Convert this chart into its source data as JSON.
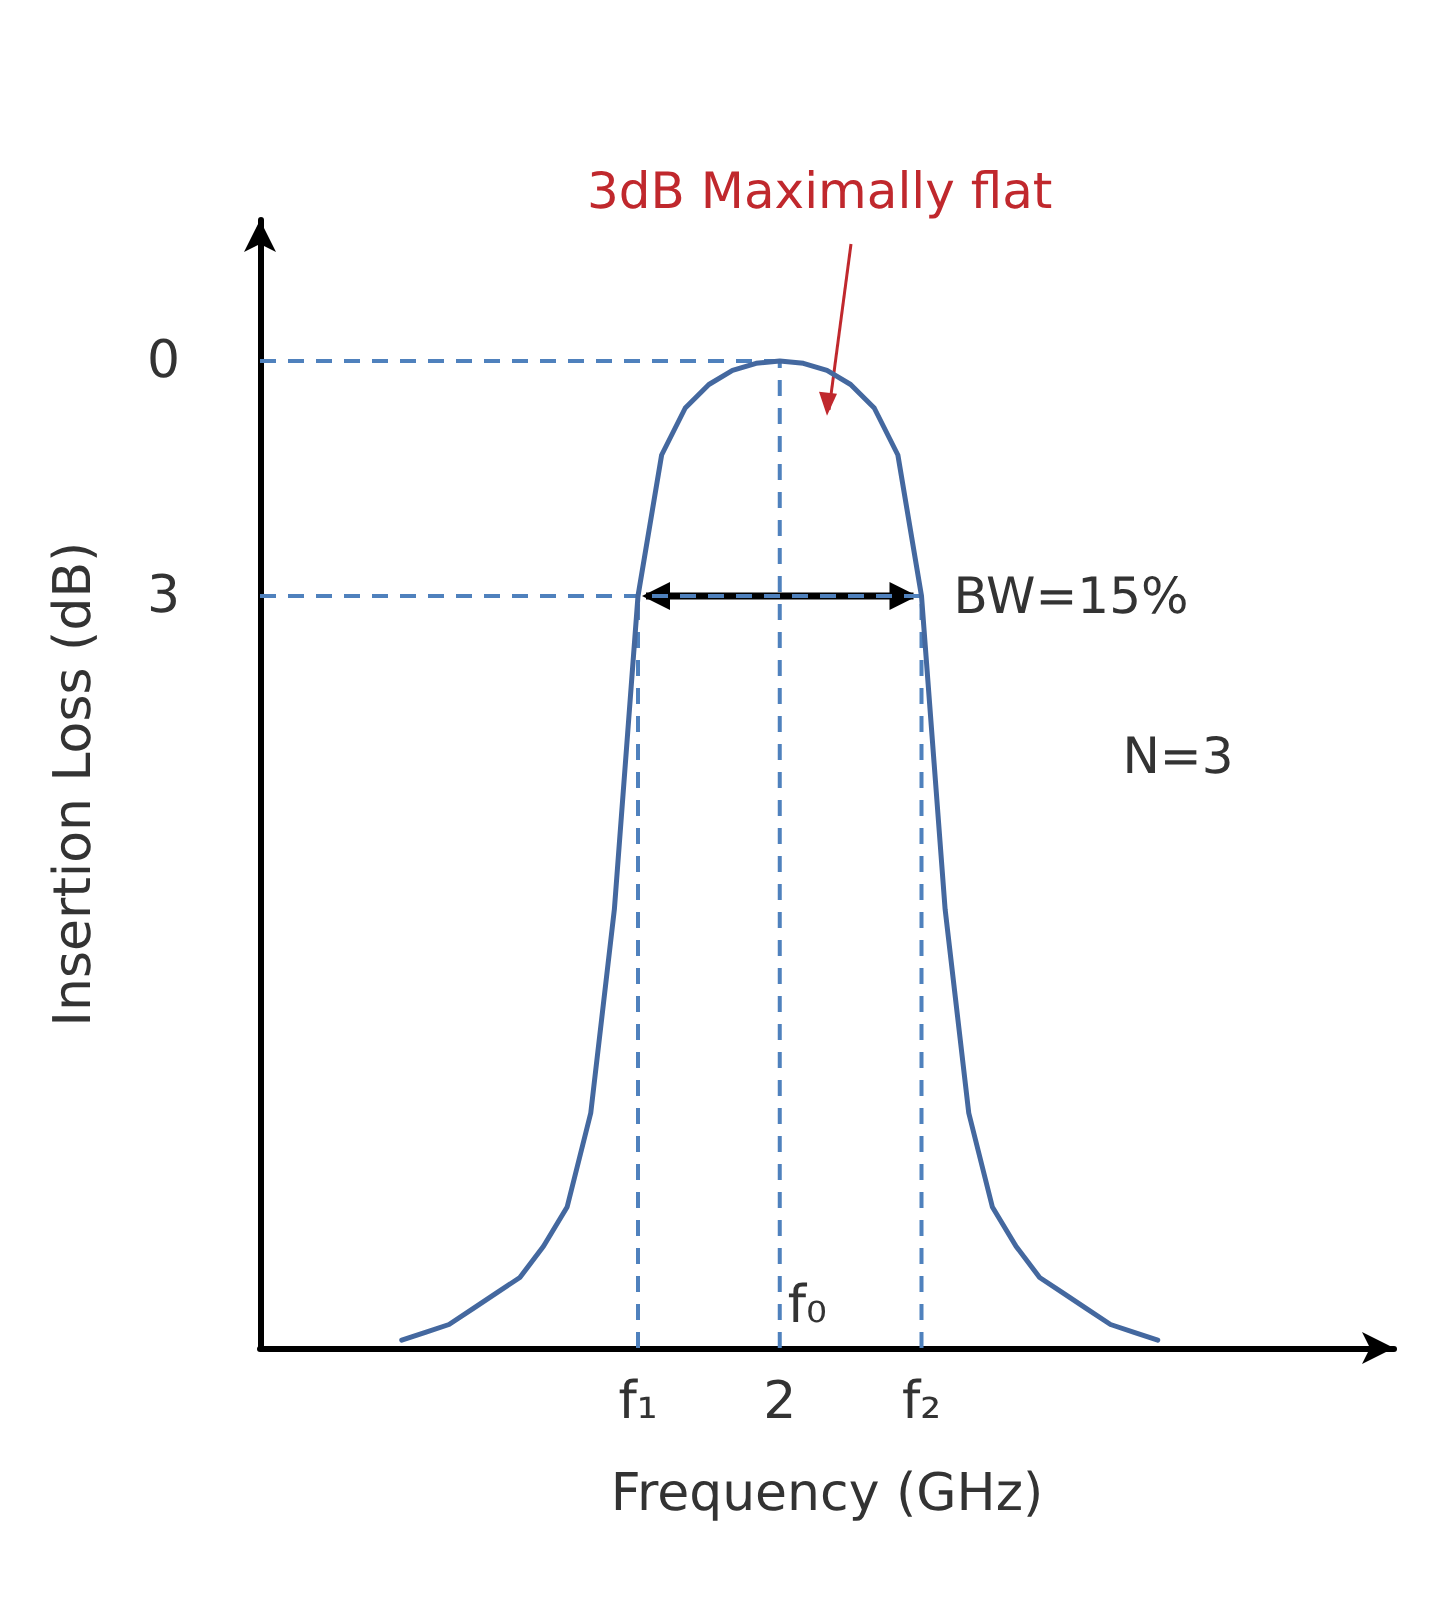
{
  "chart_data": {
    "type": "line",
    "xlabel": "Frequency (GHz)",
    "ylabel": "Insertion Loss (dB)",
    "categories": [
      null,
      null,
      null,
      null,
      null,
      null,
      null,
      null,
      null,
      null,
      null,
      null,
      null,
      null,
      null,
      null,
      "f₁",
      null,
      null,
      null,
      null,
      null,
      "2",
      null,
      null,
      null,
      null,
      null,
      "f₂",
      null,
      null,
      null,
      null,
      null,
      null,
      null,
      null,
      null,
      null,
      null,
      null,
      null,
      null,
      null,
      null,
      null,
      null,
      null,
      null
    ],
    "series": [
      {
        "color": "#44689f",
        "values": [
          null,
          null,
          null,
          null,
          null,
          null,
          12.5,
          12.4,
          12.3,
          12.1,
          11.9,
          11.7,
          11.3,
          10.8,
          9.6,
          7,
          3,
          1.2,
          0.6,
          0.3,
          0.12,
          0.03,
          0,
          0.03,
          0.12,
          0.3,
          0.6,
          1.2,
          3,
          7,
          9.6,
          10.8,
          11.3,
          11.7,
          11.9,
          12.1,
          12.3,
          12.4,
          12.5,
          null,
          null,
          null,
          null,
          null,
          null,
          null,
          null,
          null,
          null
        ]
      }
    ],
    "ylim": [
      12.6,
      -1.8
    ],
    "yticks": [
      0,
      3
    ],
    "grid": false,
    "marker": "none",
    "line_style": "solid",
    "ref_lines": [
      {
        "axis": "x",
        "value": "f₁",
        "color": "#4f81bd",
        "line_style": "dashed"
      },
      {
        "axis": "x",
        "value": "2",
        "label": "f₀",
        "color": "#4f81bd",
        "line_style": "dashed"
      },
      {
        "axis": "x",
        "value": "f₂",
        "color": "#4f81bd",
        "line_style": "dashed"
      },
      {
        "axis": "y",
        "value": 0,
        "color": "#4f81bd",
        "line_style": "dashed"
      },
      {
        "axis": "y",
        "value": 3,
        "color": "#4f81bd",
        "line_style": "dashed"
      }
    ],
    "annotations": [
      "3dB Maximally flat",
      {
        "text": "BW=15%",
        "x": "f₂",
        "y": 3
      },
      "N=3"
    ]
  }
}
